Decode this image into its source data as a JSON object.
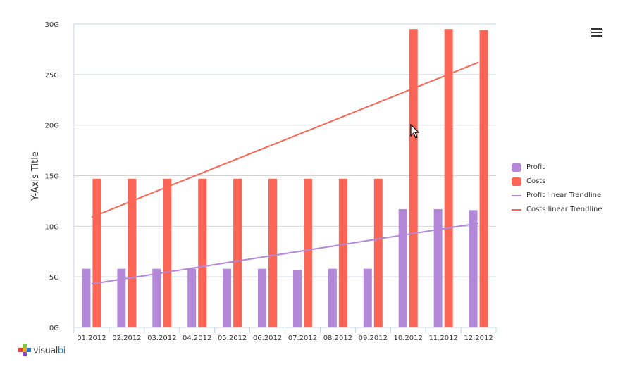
{
  "chart_data": {
    "type": "bar",
    "title": "",
    "xlabel": "",
    "ylabel": "Y-Axis Title",
    "ylim": [
      0,
      30
    ],
    "y_ticks": [
      0,
      5,
      10,
      15,
      20,
      25,
      30
    ],
    "y_tick_labels": [
      "0G",
      "5G",
      "10G",
      "15G",
      "20G",
      "25G",
      "30G"
    ],
    "categories": [
      "01.2012",
      "02.2012",
      "03.2012",
      "04.2012",
      "05.2012",
      "06.2012",
      "07.2012",
      "08.2012",
      "09.2012",
      "10.2012",
      "11.2012",
      "12.2012"
    ],
    "series": [
      {
        "name": "Profit",
        "color": "#b388d9",
        "values": [
          5.8,
          5.8,
          5.8,
          5.8,
          5.8,
          5.8,
          5.7,
          5.8,
          5.8,
          11.7,
          11.7,
          11.6
        ]
      },
      {
        "name": "Costs",
        "color": "#fa6556",
        "values": [
          14.7,
          14.7,
          14.7,
          14.7,
          14.7,
          14.7,
          14.7,
          14.7,
          14.7,
          29.5,
          29.5,
          29.4
        ]
      }
    ],
    "trendlines": [
      {
        "name": "Profit linear Trendline",
        "color": "#b388d9",
        "start": 4.3,
        "end": 10.3
      },
      {
        "name": "Costs linear Trendline",
        "color": "#fa6556",
        "start": 10.9,
        "end": 26.2
      }
    ],
    "grid": true,
    "legend_position": "right"
  },
  "legend": {
    "items": [
      {
        "label": "Profit",
        "kind": "box",
        "color": "#b388d9"
      },
      {
        "label": "Costs",
        "kind": "box",
        "color": "#fa6556"
      },
      {
        "label": "Profit linear Trendline",
        "kind": "line",
        "color": "#b388d9"
      },
      {
        "label": "Costs linear Trendline",
        "kind": "line",
        "color": "#fa6556"
      }
    ]
  },
  "logo": {
    "part1": "visual",
    "part2": "bi"
  }
}
